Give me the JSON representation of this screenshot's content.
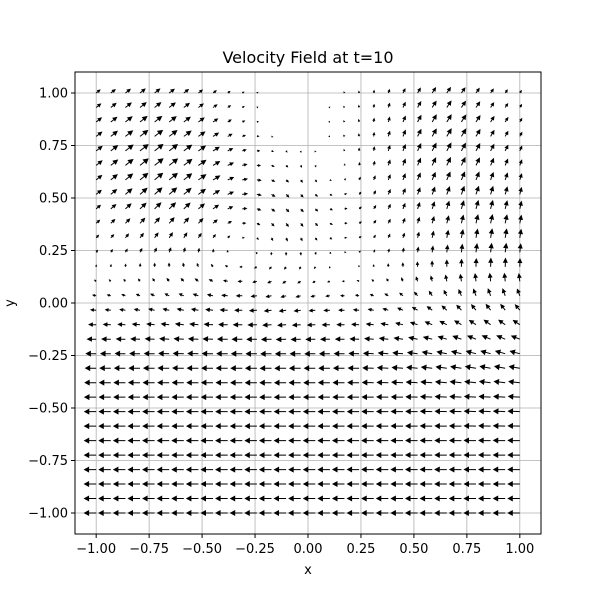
{
  "chart_data": {
    "type": "quiver",
    "title": "Velocity Field at t=10",
    "xlabel": "x",
    "ylabel": "y",
    "xlim": [
      -1.1,
      1.1
    ],
    "ylim": [
      -1.1,
      1.1
    ],
    "grid": true,
    "x_ticks": [
      -1.0,
      -0.75,
      -0.5,
      -0.25,
      0.0,
      0.25,
      0.5,
      0.75,
      1.0
    ],
    "y_ticks": [
      -1.0,
      -0.75,
      -0.5,
      -0.25,
      0.0,
      0.25,
      0.5,
      0.75,
      1.0
    ],
    "x_tick_labels": [
      "−1.00",
      "−0.75",
      "−0.50",
      "−0.25",
      "0.00",
      "0.25",
      "0.50",
      "0.75",
      "1.00"
    ],
    "y_tick_labels": [
      "−1.00",
      "−0.75",
      "−0.50",
      "−0.25",
      "0.00",
      "0.25",
      "0.50",
      "0.75",
      "1.00"
    ],
    "field": {
      "x_range": [
        -1.0,
        1.0
      ],
      "y_range": [
        -1.0,
        1.0
      ],
      "nx": 30,
      "ny": 30,
      "description": "velocity vectors sampled on a 30x30 grid; strong leftward flow in lower half, vortices in upper half"
    },
    "arrow_color": "#000000",
    "grid_color": "#b0b0b0"
  }
}
